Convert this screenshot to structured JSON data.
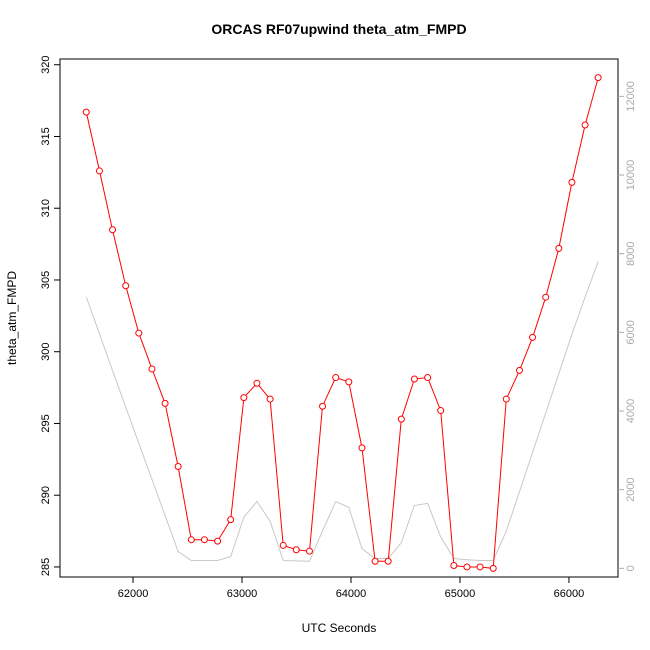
{
  "chart_data": {
    "type": "line",
    "title": "ORCAS RF07upwind theta_atm_FMPD",
    "xlabel": "UTC Seconds",
    "ylabel": "theta_atm_FMPD",
    "xlim": [
      61330,
      66450
    ],
    "ylim": [
      284.3,
      320.4
    ],
    "xticks": [
      62000,
      63000,
      64000,
      65000,
      66000
    ],
    "yticks": [
      285,
      290,
      295,
      300,
      305,
      310,
      315,
      320
    ],
    "y2lim": [
      -220,
      12950
    ],
    "y2ticks": [
      0,
      2000,
      4000,
      6000,
      8000,
      10000,
      12000
    ],
    "grid": false,
    "series": [
      {
        "axis": "left",
        "color": "#ff0000",
        "marker": "open-circle",
        "x": [
          61571,
          61692,
          61812,
          61933,
          62053,
          62174,
          62294,
          62414,
          62535,
          62655,
          62776,
          62896,
          63017,
          63137,
          63258,
          63378,
          63498,
          63619,
          63739,
          63860,
          63980,
          64101,
          64221,
          64341,
          64462,
          64582,
          64703,
          64823,
          64944,
          65064,
          65184,
          65305,
          65425,
          65546,
          65666,
          65787,
          65907,
          66027,
          66148,
          66268
        ],
        "values": [
          316.7,
          312.6,
          308.5,
          304.6,
          301.3,
          298.8,
          296.4,
          292.0,
          286.9,
          286.9,
          286.8,
          288.3,
          296.8,
          297.8,
          296.7,
          286.5,
          286.2,
          286.1,
          296.2,
          298.2,
          297.9,
          293.3,
          285.4,
          285.4,
          295.3,
          298.1,
          298.2,
          295.9,
          285.1,
          285.0,
          285.0,
          284.9,
          296.7,
          298.7,
          301.0,
          303.8,
          307.2,
          311.8,
          315.8,
          319.1
        ]
      },
      {
        "axis": "right",
        "color": "#c8c8c8",
        "marker": "none",
        "x": [
          61571,
          61692,
          61812,
          61933,
          62053,
          62174,
          62294,
          62414,
          62535,
          62655,
          62776,
          62896,
          63017,
          63137,
          63258,
          63378,
          63498,
          63619,
          63739,
          63860,
          63980,
          64101,
          64221,
          64341,
          64462,
          64582,
          64703,
          64823,
          64944,
          65064,
          65184,
          65305,
          65425,
          65546,
          65666,
          65787,
          65907,
          66027,
          66148,
          66268
        ],
        "values": [
          6900,
          5960,
          5030,
          4100,
          3180,
          2260,
          1340,
          430,
          200,
          200,
          200,
          300,
          1300,
          1700,
          1200,
          200,
          190,
          180,
          950,
          1700,
          1550,
          500,
          250,
          250,
          650,
          1600,
          1650,
          800,
          250,
          220,
          200,
          200,
          950,
          1950,
          2950,
          3950,
          4950,
          5950,
          6900,
          7800
        ]
      }
    ]
  }
}
